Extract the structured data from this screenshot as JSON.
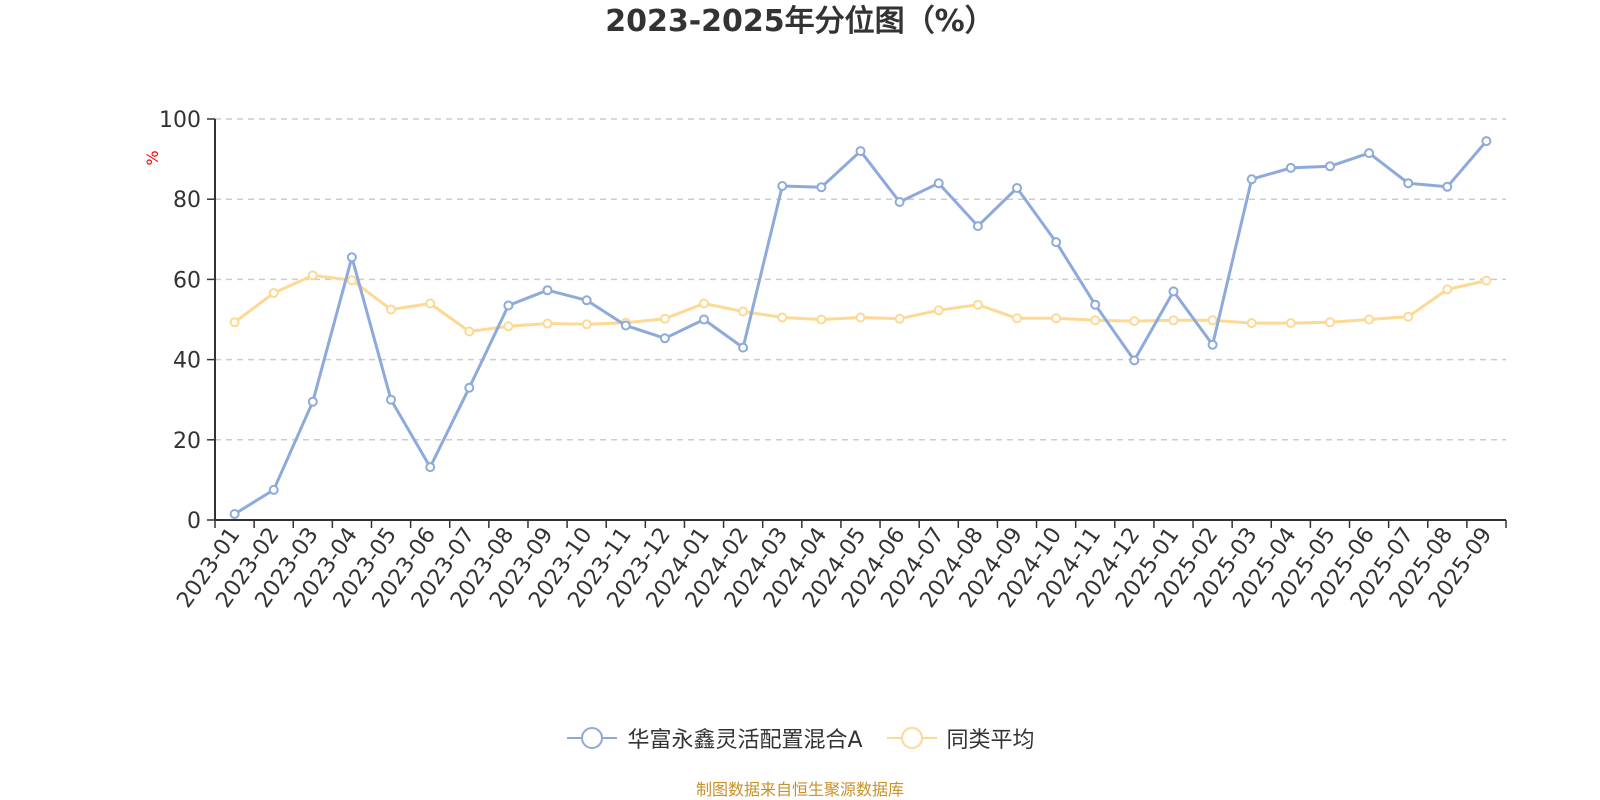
{
  "chart_data": {
    "type": "line",
    "title": "2023-2025年分位图（%）",
    "ylabel": "%",
    "xlabel": "",
    "ylim": [
      0,
      100
    ],
    "yticks": [
      0,
      20,
      40,
      60,
      80,
      100
    ],
    "grid": "horizontal dashed",
    "legend_position": "bottom-center",
    "categories": [
      "2023-01",
      "2023-02",
      "2023-03",
      "2023-04",
      "2023-05",
      "2023-06",
      "2023-07",
      "2023-08",
      "2023-09",
      "2023-10",
      "2023-11",
      "2023-12",
      "2024-01",
      "2024-02",
      "2024-03",
      "2024-04",
      "2024-05",
      "2024-06",
      "2024-07",
      "2024-08",
      "2024-09",
      "2024-10",
      "2024-11",
      "2024-12",
      "2025-01",
      "2025-02",
      "2025-03",
      "2025-04",
      "2025-05",
      "2025-06",
      "2025-07",
      "2025-08",
      "2025-09"
    ],
    "series": [
      {
        "name": "华富永鑫灵活配置混合A",
        "color": "#8eaadb",
        "values": [
          1.5,
          7.5,
          29.5,
          65.5,
          30,
          13.2,
          33,
          53.5,
          57.3,
          54.8,
          48.5,
          45.3,
          50,
          43,
          83.3,
          83,
          92,
          79.3,
          84,
          73.3,
          82.8,
          69.3,
          53.7,
          39.8,
          57,
          43.7,
          85,
          87.8,
          88.2,
          91.5,
          84,
          83.1,
          94.5
        ]
      },
      {
        "name": "同类平均",
        "color": "#fdd995",
        "values": [
          49.3,
          56.6,
          61,
          59.8,
          52.5,
          54,
          47,
          48.3,
          49,
          48.8,
          49.2,
          50.2,
          54,
          52,
          50.5,
          50,
          50.5,
          50.2,
          52.3,
          53.7,
          50.3,
          50.3,
          49.8,
          49.6,
          49.8,
          49.8,
          49.1,
          49.1,
          49.3,
          50,
          50.7,
          57.5,
          59.7
        ]
      }
    ]
  },
  "source_note": "制图数据来自恒生聚源数据库"
}
